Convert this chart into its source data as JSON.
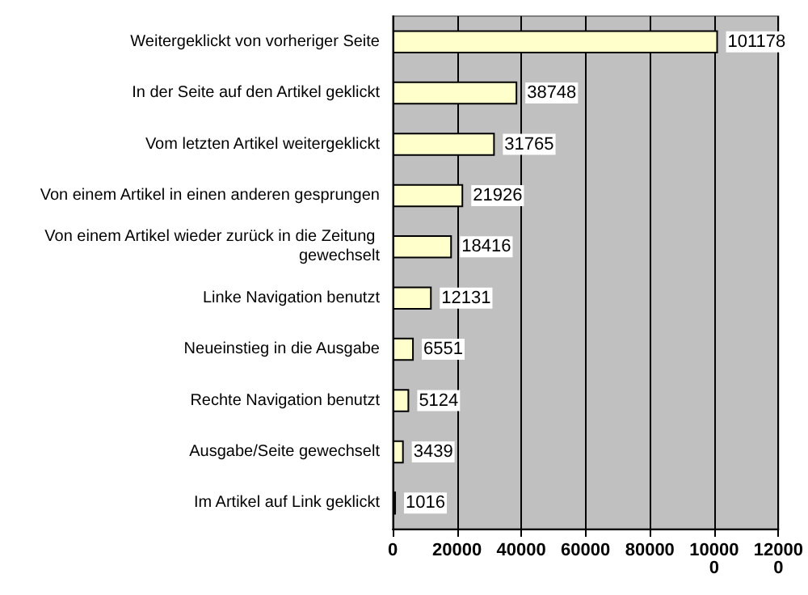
{
  "chart_data": {
    "type": "bar",
    "orientation": "horizontal",
    "categories": [
      "Weitergeklickt von vorheriger Seite",
      "In der Seite auf den Artikel geklickt",
      "Vom letzten Artikel weitergeklickt",
      "Von einem Artikel in einen anderen gesprungen",
      "Von einem Artikel wieder zurück in die Zeitung gewechselt",
      "Linke Navigation benutzt",
      "Neueinstieg in die Ausgabe",
      "Rechte Navigation benutzt",
      "Ausgabe/Seite gewechselt",
      "Im Artikel auf Link geklickt"
    ],
    "values": [
      101178,
      38748,
      31765,
      21926,
      18416,
      12131,
      6551,
      5124,
      3439,
      1016
    ],
    "color": "#ffffcc",
    "xlim": [
      0,
      120000
    ],
    "xticks": [
      0,
      20000,
      40000,
      60000,
      80000,
      100000,
      120000
    ],
    "grid": "x",
    "data_labels": true
  }
}
